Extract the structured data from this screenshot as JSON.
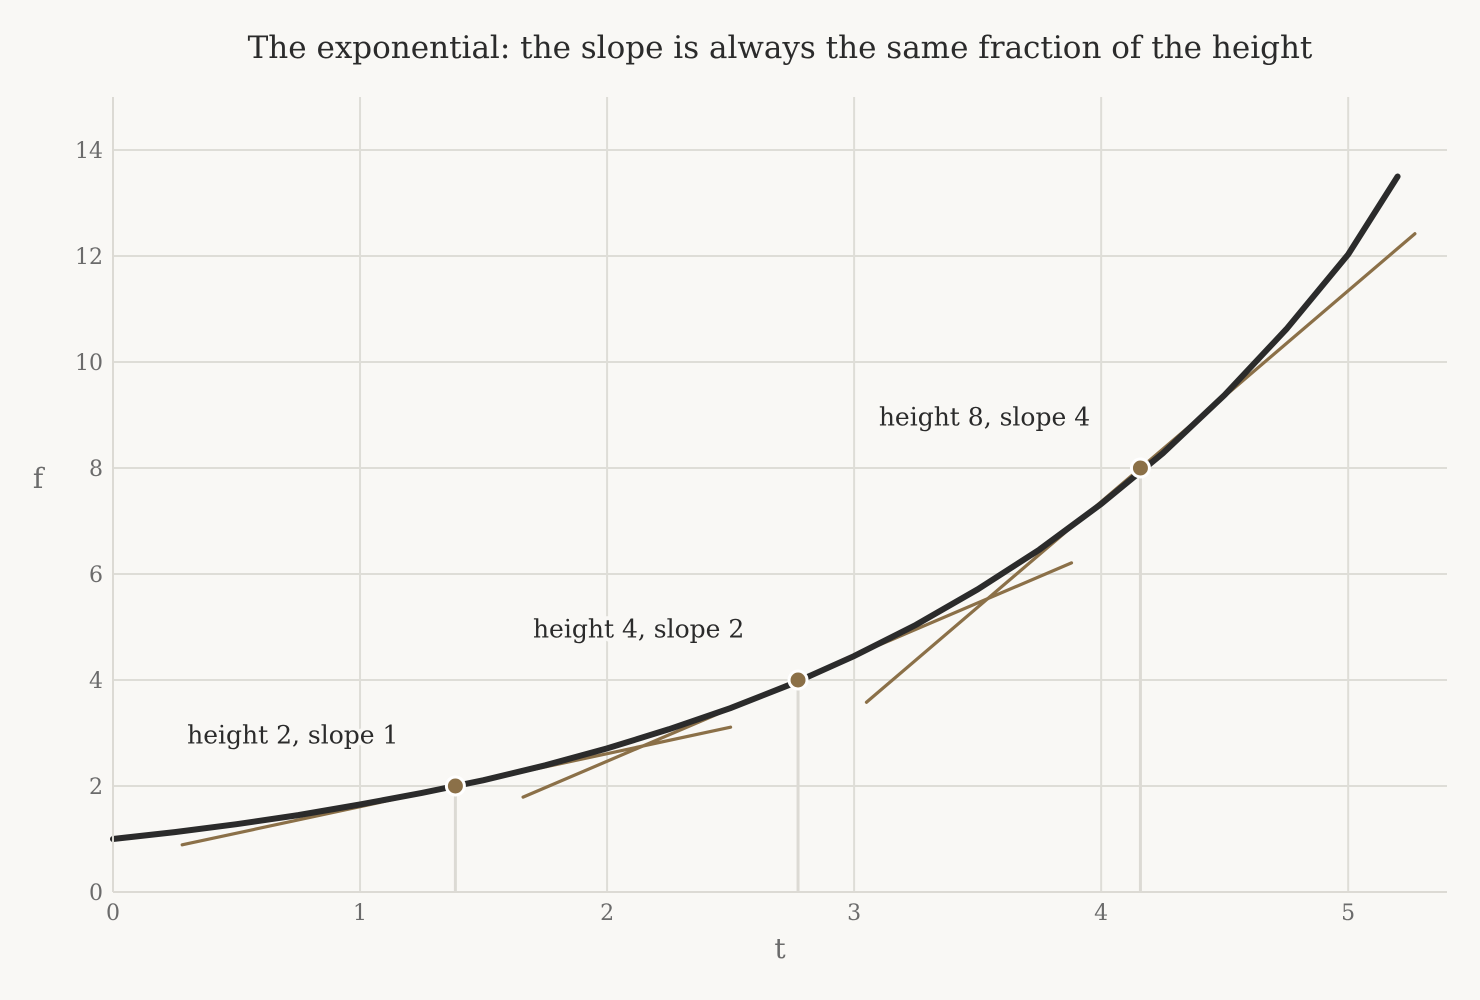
{
  "chart_data": {
    "type": "line",
    "title": "The exponential: the slope is always the same fraction of the height",
    "xlabel": "t",
    "ylabel": "f",
    "xlim": [
      0,
      5.4
    ],
    "ylim": [
      0,
      15
    ],
    "grid": true,
    "x_ticks": [
      0,
      1,
      2,
      3,
      4,
      5
    ],
    "y_ticks": [
      0,
      2,
      4,
      6,
      8,
      10,
      12,
      14
    ],
    "x_tick_labels": [
      "0",
      "1",
      "2",
      "3",
      "4",
      "5"
    ],
    "y_tick_labels": [
      "0",
      "2",
      "4",
      "6",
      "8",
      "10",
      "12",
      "14"
    ],
    "curve": {
      "x": [
        0,
        0.25,
        0.5,
        0.75,
        1.0,
        1.25,
        1.5,
        1.75,
        2.0,
        2.25,
        2.5,
        2.75,
        3.0,
        3.25,
        3.5,
        3.75,
        4.0,
        4.25,
        4.5,
        4.75,
        5.0,
        5.2
      ],
      "y": [
        1.0,
        1.13,
        1.28,
        1.45,
        1.65,
        1.87,
        2.11,
        2.39,
        2.71,
        3.07,
        3.47,
        3.93,
        4.45,
        5.04,
        5.71,
        6.46,
        7.32,
        8.28,
        9.38,
        10.62,
        12.03,
        13.5
      ],
      "color": "#2b2b2b"
    },
    "points": [
      {
        "x": 1.386,
        "y": 2,
        "label": "height 2,  slope 1",
        "label_x": 0.3,
        "label_y": 2.8,
        "tangent_x": [
          0.28,
          2.5
        ],
        "tangent_y": [
          0.89,
          3.11
        ]
      },
      {
        "x": 2.773,
        "y": 4,
        "label": "height 4,  slope 2",
        "label_x": 1.7,
        "label_y": 4.8,
        "tangent_x": [
          1.66,
          3.88
        ],
        "tangent_y": [
          1.79,
          6.21
        ]
      },
      {
        "x": 4.159,
        "y": 8,
        "label": "height 8,  slope 4",
        "label_x": 3.1,
        "label_y": 8.8,
        "tangent_x": [
          3.05,
          5.27
        ],
        "tangent_y": [
          3.58,
          12.42
        ]
      }
    ],
    "accent_color": "#8b7048",
    "grid_color": "#deddd7",
    "background": "#f9f8f5"
  }
}
